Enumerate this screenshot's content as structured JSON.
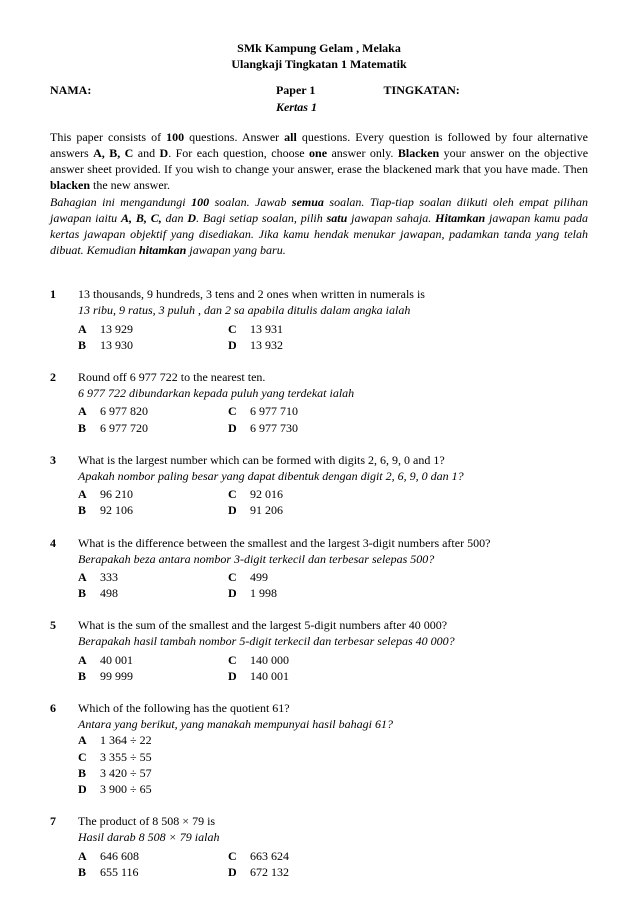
{
  "header": {
    "school": "SMk Kampung Gelam , Melaka",
    "subtitle": "Ulangkaji Tingkatan 1 Matematik",
    "nama_label": "NAMA:",
    "paper_en": "Paper 1",
    "paper_ms": "Kertas 1",
    "tingkatan_label": "TINGKATAN:"
  },
  "instructions": {
    "en_1": "This paper consists of ",
    "en_100": "100",
    "en_2": " questions. Answer ",
    "en_all": "all",
    "en_3": " questions. Every question is followed by four alternative answers ",
    "en_abcd": "A, B, C",
    "en_and": " and ",
    "en_d": "D",
    "en_4": ". For each question, choose ",
    "en_one": "one",
    "en_5": " answer only. ",
    "en_blacken": "Blacken",
    "en_6": " your answer on the objective answer sheet provided. If you wish to change your answer, erase the blackened mark that you have made. Then ",
    "en_blacken2": "blacken",
    "en_7": " the new answer.",
    "ms_1": "Bahagian ini mengandungi ",
    "ms_100": "100",
    "ms_2": " soalan. Jawab ",
    "ms_semua": "semua",
    "ms_3": " soalan. Tiap-tiap soalan diikuti oleh empat pilihan jawapan iaitu ",
    "ms_abcd": "A, B, C,",
    "ms_dan": " dan ",
    "ms_d": "D",
    "ms_4": ". Bagi setiap soalan, pilih ",
    "ms_satu": "satu",
    "ms_5": " jawapan sahaja. ",
    "ms_hitam": "Hitamkan",
    "ms_6": " jawapan kamu pada kertas jawapan objektif yang disediakan. Jika kamu hendak menukar jawapan, padamkan tanda yang telah dibuat. Kemudian ",
    "ms_hitam2": "hitamkan",
    "ms_7": " jawapan yang baru."
  },
  "questions": [
    {
      "num": "1",
      "en": "13 thousands, 9 hundreds, 3 tens and 2 ones when written in numerals is",
      "ms": "13 ribu, 9 ratus, 3 puluh , dan 2 sa apabila ditulis dalam angka ialah",
      "layout": "2col",
      "opts": {
        "A": "13 929",
        "B": "13 930",
        "C": "13 931",
        "D": "13 932"
      }
    },
    {
      "num": "2",
      "en": "Round off 6 977 722 to the nearest ten.",
      "ms": "6 977 722 dibundarkan kepada puluh yang terdekat ialah",
      "layout": "2col",
      "opts": {
        "A": "6 977 820",
        "B": "6 977 720",
        "C": "6 977 710",
        "D": "6 977 730"
      }
    },
    {
      "num": "3",
      "en": "What is the largest number which can be formed with digits 2, 6, 9, 0 and 1?",
      "ms": "Apakah nombor paling besar yang dapat dibentuk dengan digit 2, 6, 9, 0 dan 1?",
      "layout": "2col",
      "opts": {
        "A": "96 210",
        "B": "92 106",
        "C": "92 016",
        "D": "91 206"
      }
    },
    {
      "num": "4",
      "en": "What is the difference between the smallest and the largest 3-digit numbers after 500?",
      "ms": "Berapakah beza antara nombor 3-digit terkecil dan terbesar selepas 500?",
      "layout": "2col",
      "opts": {
        "A": "333",
        "B": "498",
        "C": "499",
        "D": "1 998"
      }
    },
    {
      "num": "5",
      "en": "What is the sum of the smallest and the largest 5-digit numbers after 40 000?",
      "ms": "Berapakah hasil tambah nombor 5-digit terkecil dan terbesar selepas 40 000?",
      "layout": "2col",
      "opts": {
        "A": "40 001",
        "B": "99 999",
        "C": "140 000",
        "D": "140 001"
      }
    },
    {
      "num": "6",
      "en": "Which of the following has the quotient 61?",
      "ms": "Antara yang berikut, yang manakah mempunyai hasil bahagi 61?",
      "layout": "1col",
      "opts": {
        "A": "1 364 ÷ 22",
        "C": "3 355 ÷ 55",
        "B": "3 420 ÷ 57",
        "D": "3 900 ÷ 65"
      }
    },
    {
      "num": "7",
      "en": "The product of 8 508 × 79 is",
      "ms": "Hasil darab 8 508 × 79 ialah",
      "layout": "2col",
      "opts": {
        "A": "646 608",
        "B": "655 116",
        "C": "663 624",
        "D": "672 132"
      }
    }
  ]
}
